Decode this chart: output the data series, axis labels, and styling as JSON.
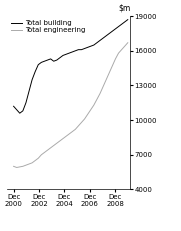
{
  "title": "",
  "ylim": [
    4000,
    19000
  ],
  "yticks": [
    4000,
    7000,
    10000,
    13000,
    16000,
    19000
  ],
  "ytick_labels": [
    "4000",
    "7000",
    "10000",
    "13000",
    "16000",
    "19000"
  ],
  "xtick_labels": [
    "Dec\n2000",
    "Dec\n2002",
    "Dec\n2004",
    "Dec\n2006",
    "Dec\n2008"
  ],
  "xtick_positions": [
    2000,
    2002,
    2004,
    2006,
    2008
  ],
  "legend_entries": [
    "Total building",
    "Total engineering"
  ],
  "line_colors": [
    "#000000",
    "#aaaaaa"
  ],
  "background_color": "#ffffff",
  "xlim": [
    1999.5,
    2009.2
  ],
  "total_building": [
    11200,
    10900,
    10600,
    10800,
    11500,
    12500,
    13500,
    14200,
    14800,
    15000,
    15100,
    15200,
    15300,
    15100,
    15200,
    15400,
    15600,
    15700,
    15800,
    15900,
    16000,
    16100,
    16100,
    16200,
    16300,
    16400,
    16500,
    16700,
    16900,
    17100,
    17300,
    17500,
    17700,
    17900,
    18100,
    18300,
    18500,
    18700
  ],
  "total_engineering": [
    6000,
    5900,
    5950,
    6000,
    6100,
    6200,
    6300,
    6500,
    6700,
    7000,
    7200,
    7400,
    7600,
    7800,
    8000,
    8200,
    8400,
    8600,
    8800,
    9000,
    9200,
    9500,
    9800,
    10100,
    10500,
    10900,
    11300,
    11800,
    12300,
    12900,
    13500,
    14100,
    14700,
    15300,
    15800,
    16100,
    16400,
    16700
  ]
}
